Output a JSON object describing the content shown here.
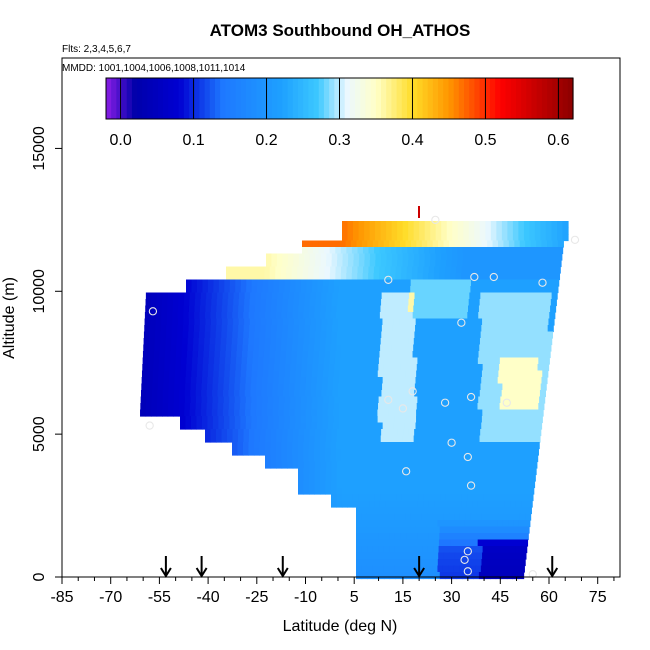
{
  "chart_data": {
    "type": "heatmap",
    "title": "ATOM3 Southbound OH_ATHOS",
    "subtitle_flights": "Flts: 2,3,4,5,6,7",
    "subtitle_dates": "MMDD: 1001,1004,1006,1008,1011,1014",
    "xlabel": "Latitude (deg N)",
    "ylabel": "Altitude (m)",
    "xlim": [
      -85,
      85
    ],
    "ylim": [
      0,
      18000
    ],
    "x_ticks": [
      -85,
      -70,
      -55,
      -40,
      -25,
      -10,
      5,
      15,
      30,
      45,
      60,
      75
    ],
    "y_ticks": [
      0,
      5000,
      10000,
      15000
    ],
    "colorbar": {
      "range": [
        -0.02,
        0.62
      ],
      "ticks": [
        0.0,
        0.1,
        0.2,
        0.3,
        0.4,
        0.5,
        0.6
      ],
      "colors": [
        "#8b1ee6",
        "#0000c8",
        "#1f8fff",
        "#00c8ff",
        "#ffffff",
        "#ffe633",
        "#ff8c00",
        "#ff0000",
        "#8b0000"
      ]
    },
    "profile_markers_lat": [
      -53,
      -42,
      -17,
      20,
      61
    ],
    "observations": [
      {
        "lat": -57,
        "alt": 9300
      },
      {
        "lat": -58,
        "alt": 5300
      },
      {
        "lat": 12,
        "alt": 10400
      },
      {
        "lat": 37,
        "alt": 10500
      },
      {
        "lat": 43,
        "alt": 10500
      },
      {
        "lat": 58,
        "alt": 10300
      },
      {
        "lat": 68,
        "alt": 11800
      },
      {
        "lat": 25,
        "alt": 12500
      },
      {
        "lat": 33,
        "alt": 8900
      },
      {
        "lat": 18,
        "alt": 6500
      },
      {
        "lat": 12,
        "alt": 6200
      },
      {
        "lat": 15,
        "alt": 5900
      },
      {
        "lat": 28,
        "alt": 6100
      },
      {
        "lat": 36,
        "alt": 6300
      },
      {
        "lat": 47,
        "alt": 6100
      },
      {
        "lat": 30,
        "alt": 4700
      },
      {
        "lat": 35,
        "alt": 4200
      },
      {
        "lat": 16,
        "alt": 3700
      },
      {
        "lat": 36,
        "alt": 3200
      },
      {
        "lat": 35,
        "alt": 900
      },
      {
        "lat": 34,
        "alt": 600
      },
      {
        "lat": 35,
        "alt": 200
      },
      {
        "lat": 55,
        "alt": 100
      }
    ]
  }
}
